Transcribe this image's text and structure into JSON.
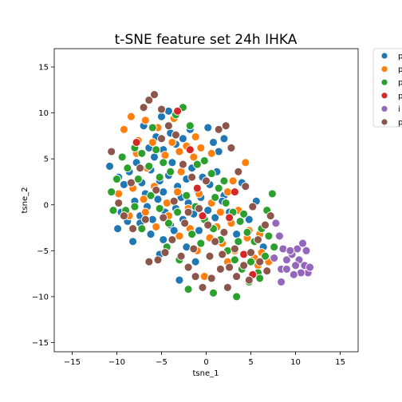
{
  "chart_data": {
    "type": "scatter",
    "title": "t-SNE feature set 24h IHKA",
    "xlabel": "tsne_1",
    "ylabel": "tsne_2",
    "xlim": [
      -17,
      17
    ],
    "ylim": [
      -16,
      17
    ],
    "xticks": [
      "−15",
      "−10",
      "−5",
      "0",
      "5",
      "10",
      "15"
    ],
    "yticks": [
      "−15",
      "−10",
      "−5",
      "0",
      "5",
      "10",
      "15"
    ],
    "xtick_values": [
      -15,
      -10,
      -5,
      0,
      5,
      10,
      15
    ],
    "ytick_values": [
      -15,
      -10,
      -5,
      0,
      5,
      10,
      15
    ],
    "grid": false,
    "legend_position": "outside-right-top",
    "series": [
      {
        "name": "p",
        "color": "#1f77b4",
        "points": [
          [
            -10.8,
            4.2
          ],
          [
            -9.8,
            3.0
          ],
          [
            -9.2,
            2.2
          ],
          [
            -8.6,
            3.6
          ],
          [
            -7.8,
            4.6
          ],
          [
            -7.2,
            2.4
          ],
          [
            -6.8,
            1.2
          ],
          [
            -6.2,
            3.8
          ],
          [
            -5.8,
            5.2
          ],
          [
            -5.2,
            2.6
          ],
          [
            -4.8,
            1.4
          ],
          [
            -4.2,
            3.2
          ],
          [
            -3.8,
            4.6
          ],
          [
            -3.2,
            2.0
          ],
          [
            -2.8,
            0.8
          ],
          [
            -2.2,
            2.8
          ],
          [
            -1.6,
            4.0
          ],
          [
            -1.0,
            1.6
          ],
          [
            -0.4,
            3.0
          ],
          [
            0.4,
            2.2
          ],
          [
            1.2,
            3.6
          ],
          [
            2.0,
            1.0
          ],
          [
            -9.5,
            -0.8
          ],
          [
            -8.8,
            -1.8
          ],
          [
            -8.0,
            0.4
          ],
          [
            -7.4,
            -1.2
          ],
          [
            -6.6,
            -0.2
          ],
          [
            -6.0,
            -1.6
          ],
          [
            -5.4,
            0.6
          ],
          [
            -4.6,
            -0.8
          ],
          [
            -4.0,
            -2.2
          ],
          [
            -3.4,
            -0.4
          ],
          [
            -2.6,
            -1.6
          ],
          [
            -2.0,
            0.2
          ],
          [
            -1.4,
            -1.0
          ],
          [
            -0.6,
            0.8
          ],
          [
            0.2,
            -0.6
          ],
          [
            1.0,
            -1.4
          ],
          [
            1.8,
            0.4
          ],
          [
            2.6,
            -0.8
          ],
          [
            -6.4,
            6.2
          ],
          [
            -5.6,
            7.4
          ],
          [
            -4.8,
            6.0
          ],
          [
            -4.0,
            7.8
          ],
          [
            -3.4,
            6.6
          ],
          [
            -2.6,
            7.2
          ],
          [
            -1.8,
            8.2
          ],
          [
            -7.0,
            8.6
          ],
          [
            -5.0,
            9.6
          ],
          [
            -4.2,
            10.2
          ],
          [
            0.2,
            8.4
          ],
          [
            0.8,
            6.8
          ],
          [
            2.0,
            7.2
          ],
          [
            1.4,
            5.8
          ],
          [
            -2.2,
            -4.6
          ],
          [
            -3.0,
            -8.2
          ],
          [
            -1.2,
            -6.2
          ],
          [
            3.4,
            -3.2
          ],
          [
            5.6,
            0.4
          ],
          [
            4.0,
            2.4
          ],
          [
            -6.2,
            -3.2
          ],
          [
            -4.8,
            -3.8
          ],
          [
            -3.6,
            -2.8
          ],
          [
            -8.2,
            -4.0
          ],
          [
            -9.9,
            -2.6
          ],
          [
            -7.4,
            -2.0
          ],
          [
            -5.2,
            -5.4
          ],
          [
            6.4,
            -4.6
          ],
          [
            4.8,
            -1.6
          ],
          [
            -0.8,
            -2.8
          ]
        ]
      },
      {
        "name": "p",
        "color": "#ff7f0e",
        "points": [
          [
            -9.2,
            8.2
          ],
          [
            -8.4,
            9.6
          ],
          [
            -7.6,
            7.0
          ],
          [
            -6.8,
            9.2
          ],
          [
            -6.0,
            6.8
          ],
          [
            -5.4,
            8.4
          ],
          [
            -4.6,
            5.4
          ],
          [
            -3.8,
            6.8
          ],
          [
            -3.0,
            5.8
          ],
          [
            -2.2,
            6.4
          ],
          [
            -1.4,
            5.2
          ],
          [
            -0.6,
            6.2
          ],
          [
            0.6,
            5.6
          ],
          [
            -9.8,
            1.2
          ],
          [
            -8.2,
            1.8
          ],
          [
            -7.0,
            0.6
          ],
          [
            -5.8,
            2.0
          ],
          [
            -4.4,
            0.2
          ],
          [
            -3.2,
            1.4
          ],
          [
            -2.0,
            -0.4
          ],
          [
            -0.8,
            1.2
          ],
          [
            0.6,
            0.2
          ],
          [
            1.6,
            -0.8
          ],
          [
            2.8,
            -2.0
          ],
          [
            3.6,
            -0.6
          ],
          [
            4.4,
            4.6
          ],
          [
            -1.0,
            -5.0
          ],
          [
            -0.2,
            -7.8
          ],
          [
            1.8,
            -4.2
          ],
          [
            2.4,
            -6.2
          ],
          [
            3.2,
            -5.0
          ],
          [
            4.6,
            -3.6
          ],
          [
            5.4,
            -5.8
          ],
          [
            6.2,
            -5.2
          ],
          [
            7.0,
            -6.2
          ],
          [
            6.0,
            -3.2
          ],
          [
            -5.6,
            -2.4
          ],
          [
            -4.2,
            -1.2
          ],
          [
            -3.0,
            -3.4
          ],
          [
            -1.8,
            -2.6
          ],
          [
            0.4,
            -3.6
          ],
          [
            1.2,
            -2.4
          ],
          [
            -7.8,
            5.6
          ],
          [
            -6.6,
            4.0
          ],
          [
            -2.8,
            3.6
          ],
          [
            -1.2,
            7.4
          ],
          [
            2.4,
            1.4
          ],
          [
            -3.6,
            9.4
          ],
          [
            -8.6,
            -1.2
          ],
          [
            -6.8,
            -0.8
          ],
          [
            3.0,
            2.6
          ],
          [
            4.8,
            -2.8
          ],
          [
            5.8,
            -6.6
          ]
        ]
      },
      {
        "name": "p",
        "color": "#2ca02c",
        "points": [
          [
            -10.6,
            1.4
          ],
          [
            -10.0,
            2.8
          ],
          [
            -9.4,
            5.2
          ],
          [
            -8.8,
            4.0
          ],
          [
            -8.0,
            6.2
          ],
          [
            -7.2,
            5.6
          ],
          [
            -6.4,
            4.2
          ],
          [
            -5.6,
            6.0
          ],
          [
            -4.8,
            4.6
          ],
          [
            -4.0,
            3.6
          ],
          [
            -3.4,
            9.8
          ],
          [
            -2.6,
            10.6
          ],
          [
            -1.8,
            8.6
          ],
          [
            -1.0,
            4.4
          ],
          [
            -0.2,
            4.8
          ],
          [
            0.6,
            3.4
          ],
          [
            1.4,
            1.8
          ],
          [
            2.2,
            0.2
          ],
          [
            3.0,
            -0.8
          ],
          [
            3.8,
            -1.8
          ],
          [
            4.6,
            -3.0
          ],
          [
            5.4,
            -4.0
          ],
          [
            6.2,
            -2.6
          ],
          [
            7.0,
            -3.4
          ],
          [
            7.6,
            -4.6
          ],
          [
            6.6,
            -5.6
          ],
          [
            5.8,
            -7.4
          ],
          [
            4.8,
            -8.4
          ],
          [
            4.0,
            -7.0
          ],
          [
            3.2,
            -6.0
          ],
          [
            2.4,
            -5.0
          ],
          [
            1.6,
            -3.8
          ],
          [
            0.8,
            -2.6
          ],
          [
            -0.2,
            -1.6
          ],
          [
            -1.2,
            -0.2
          ],
          [
            -2.2,
            1.0
          ],
          [
            -3.2,
            -0.8
          ],
          [
            -4.2,
            -2.0
          ],
          [
            -5.2,
            -0.4
          ],
          [
            -6.2,
            1.0
          ],
          [
            -7.2,
            -2.6
          ],
          [
            -8.0,
            -0.2
          ],
          [
            -9.0,
            -0.6
          ],
          [
            -10.4,
            -0.6
          ],
          [
            -6.0,
            8.4
          ],
          [
            -5.2,
            3.0
          ],
          [
            -2.0,
            -9.2
          ],
          [
            0.8,
            -9.6
          ],
          [
            3.4,
            -10.0
          ],
          [
            5.0,
            -6.2
          ],
          [
            6.0,
            -8.0
          ],
          [
            1.0,
            0.8
          ],
          [
            2.0,
            2.6
          ],
          [
            -0.6,
            -4.2
          ],
          [
            -1.6,
            -3.2
          ],
          [
            3.6,
            -4.0
          ],
          [
            4.2,
            -1.0
          ],
          [
            7.4,
            1.2
          ],
          [
            6.8,
            -0.6
          ],
          [
            -7.6,
            2.8
          ],
          [
            -4.4,
            -4.6
          ],
          [
            -3.0,
            -6.0
          ]
        ]
      },
      {
        "name": "p",
        "color": "#d62728",
        "points": [
          [
            -7.8,
            6.8
          ],
          [
            -3.2,
            10.2
          ],
          [
            -1.8,
            6.0
          ],
          [
            -1.0,
            1.8
          ],
          [
            3.2,
            1.4
          ],
          [
            2.6,
            -1.4
          ],
          [
            4.2,
            -5.4
          ],
          [
            5.2,
            -7.6
          ],
          [
            -0.4,
            -1.2
          ]
        ]
      },
      {
        "name": "i",
        "color": "#9467bd",
        "points": [
          [
            7.8,
            -2.0
          ],
          [
            8.2,
            -3.4
          ],
          [
            8.6,
            -4.8
          ],
          [
            7.6,
            -5.8
          ],
          [
            8.4,
            -7.0
          ],
          [
            9.0,
            -6.0
          ],
          [
            9.6,
            -5.4
          ],
          [
            10.2,
            -4.8
          ],
          [
            10.8,
            -4.2
          ],
          [
            11.2,
            -5.0
          ],
          [
            10.4,
            -6.0
          ],
          [
            11.0,
            -6.6
          ],
          [
            11.4,
            -7.4
          ],
          [
            10.6,
            -7.4
          ],
          [
            9.8,
            -7.6
          ],
          [
            9.0,
            -7.0
          ],
          [
            8.4,
            -8.4
          ],
          [
            11.6,
            -6.8
          ],
          [
            10.0,
            -6.6
          ],
          [
            9.4,
            -5.0
          ]
        ]
      },
      {
        "name": "p",
        "color": "#8c564b",
        "points": [
          [
            -10.6,
            5.8
          ],
          [
            -9.2,
            -1.2
          ],
          [
            -8.4,
            2.4
          ],
          [
            -7.0,
            10.6
          ],
          [
            -6.4,
            11.4
          ],
          [
            -5.8,
            12.0
          ],
          [
            -5.0,
            10.4
          ],
          [
            -4.2,
            8.6
          ],
          [
            -3.4,
            7.6
          ],
          [
            -2.6,
            4.4
          ],
          [
            -1.6,
            3.0
          ],
          [
            -0.8,
            -0.4
          ],
          [
            0.2,
            -2.2
          ],
          [
            1.0,
            -4.0
          ],
          [
            1.8,
            -5.4
          ],
          [
            2.6,
            -6.8
          ],
          [
            3.4,
            -7.8
          ],
          [
            4.2,
            -6.6
          ],
          [
            5.0,
            -5.2
          ],
          [
            5.8,
            -3.8
          ],
          [
            6.6,
            -2.2
          ],
          [
            7.2,
            -1.2
          ],
          [
            1.4,
            8.2
          ],
          [
            2.2,
            8.6
          ],
          [
            2.8,
            6.2
          ],
          [
            3.6,
            3.6
          ],
          [
            4.4,
            2.0
          ],
          [
            5.2,
            -0.2
          ],
          [
            -3.8,
            -3.8
          ],
          [
            -4.6,
            -5.2
          ],
          [
            -5.4,
            -6.0
          ],
          [
            -6.4,
            -6.2
          ],
          [
            -2.8,
            -5.6
          ],
          [
            -2.0,
            -6.8
          ],
          [
            -1.2,
            -7.8
          ],
          [
            -0.4,
            -9.0
          ],
          [
            0.6,
            -8.0
          ],
          [
            1.6,
            -7.0
          ],
          [
            2.4,
            -9.0
          ],
          [
            3.2,
            -4.8
          ],
          [
            -9.8,
            0.2
          ],
          [
            -8.2,
            -2.6
          ],
          [
            -6.8,
            -1.6
          ],
          [
            -5.6,
            1.6
          ],
          [
            -4.8,
            -1.4
          ],
          [
            -3.6,
            0.4
          ],
          [
            -2.4,
            -2.0
          ],
          [
            -1.4,
            -4.8
          ],
          [
            0.4,
            -5.6
          ],
          [
            4.8,
            -8.2
          ],
          [
            6.0,
            -6.2
          ],
          [
            6.8,
            -7.2
          ],
          [
            -7.4,
            4.0
          ],
          [
            -5.0,
            7.2
          ],
          [
            -2.0,
            -0.8
          ],
          [
            0.0,
            2.6
          ],
          [
            2.0,
            -3.0
          ]
        ]
      }
    ]
  }
}
